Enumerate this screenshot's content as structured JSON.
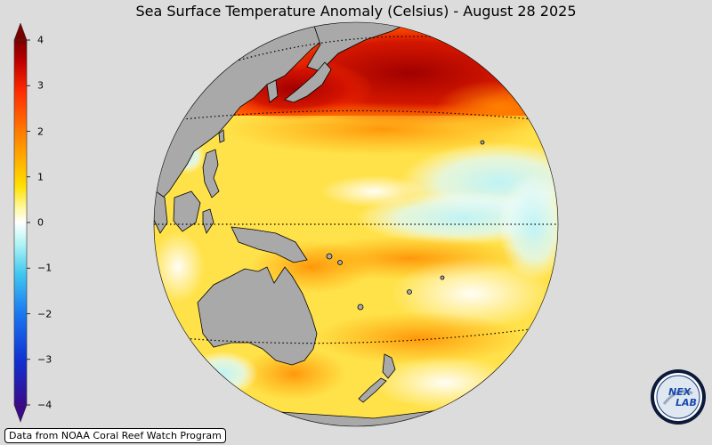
{
  "title": "Sea Surface Temperature Anomaly (Celsius) - August 28 2025",
  "colorbar": {
    "ticks": [
      "4",
      "3",
      "2",
      "1",
      "0",
      "−1",
      "−2",
      "−3",
      "−4"
    ],
    "colors": [
      "#2a0a6a",
      "#1030d0",
      "#1a78f0",
      "#40c8f0",
      "#b0f4f4",
      "#ffffff",
      "#fff8a0",
      "#ffe000",
      "#ffb000",
      "#ff7000",
      "#ff2a00",
      "#c00000",
      "#7a0000"
    ]
  },
  "credit": "Data from NOAA Coral Reef Watch Program",
  "logo": {
    "text_top": "NEX",
    "text_bottom": "LAB"
  },
  "map": {
    "land_color": "#a9a9a9",
    "ocean_base": "#ffe24a"
  }
}
